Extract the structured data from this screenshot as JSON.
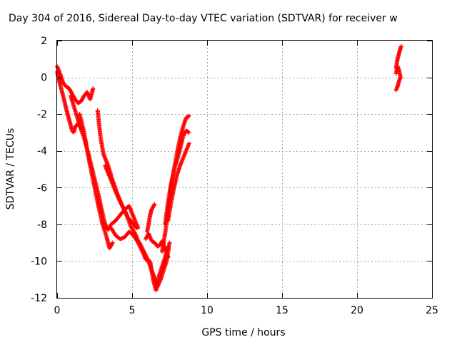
{
  "chart_data": {
    "type": "scatter",
    "title": "Day 304 of 2016, Sidereal Day-to-day VTEC variation (SDTVAR) for receiver w",
    "xlabel": "GPS time / hours",
    "ylabel": "SDTVAR / TECUs",
    "xlim": [
      0,
      25
    ],
    "ylim": [
      -12,
      2
    ],
    "x_ticks": [
      0,
      5,
      10,
      15,
      20,
      25
    ],
    "y_ticks": [
      -12,
      -10,
      -8,
      -6,
      -4,
      -2,
      0,
      2
    ],
    "x_tick_labels": [
      "0",
      "5",
      "10",
      "15",
      "20",
      "25"
    ],
    "y_tick_labels": [
      "-12",
      "-10",
      "-8",
      "-6",
      "-4",
      "-2",
      "0",
      "2"
    ],
    "grid": true,
    "marker": "plus",
    "marker_color": "#ff0000",
    "series": [
      {
        "x": [
          0.0,
          0.2,
          0.4,
          0.6,
          0.8,
          1.0,
          1.2,
          1.4,
          1.6,
          1.8,
          2.0,
          2.2,
          2.4
        ],
        "y": [
          0.6,
          0.2,
          -0.3,
          -0.5,
          -0.6,
          -0.9,
          -1.2,
          -1.4,
          -1.3,
          -1.0,
          -0.8,
          -1.2,
          -0.6
        ]
      },
      {
        "x": [
          0.0,
          0.2,
          0.4,
          0.6,
          0.8,
          1.0,
          1.1,
          1.2,
          1.4,
          1.6
        ],
        "y": [
          0.3,
          -0.4,
          -1.0,
          -1.7,
          -2.3,
          -2.9,
          -3.0,
          -2.7,
          -2.5,
          -2.8
        ]
      },
      {
        "x": [
          0.9,
          1.2,
          1.5,
          1.8,
          2.1,
          2.4,
          2.7,
          3.0,
          3.2,
          3.4,
          3.6,
          3.9,
          4.2,
          4.5,
          4.8,
          5.1,
          5.4
        ],
        "y": [
          -1.0,
          -1.8,
          -2.6,
          -3.3,
          -4.2,
          -5.2,
          -6.2,
          -7.3,
          -8.0,
          -8.3,
          -8.0,
          -7.8,
          -7.5,
          -7.2,
          -7.0,
          -7.6,
          -8.2
        ]
      },
      {
        "x": [
          1.5,
          1.8,
          2.1,
          2.4,
          2.7,
          3.0,
          3.3,
          3.5,
          3.7
        ],
        "y": [
          -2.0,
          -3.0,
          -4.4,
          -5.6,
          -6.8,
          -7.9,
          -8.7,
          -9.3,
          -9.0
        ]
      },
      {
        "x": [
          2.7,
          2.9,
          3.1,
          3.4,
          3.7,
          4.0,
          4.3,
          4.6,
          4.9,
          5.2,
          5.5,
          5.8,
          6.0
        ],
        "y": [
          -1.8,
          -3.3,
          -4.2,
          -4.8,
          -5.6,
          -6.3,
          -6.9,
          -7.4,
          -8.1,
          -8.5,
          -9.1,
          -9.6,
          -10.0
        ]
      },
      {
        "x": [
          3.2,
          3.5,
          3.8,
          4.1,
          4.4,
          4.7,
          5.0,
          5.3
        ],
        "y": [
          -4.8,
          -5.4,
          -6.0,
          -6.6,
          -7.1,
          -7.6,
          -7.9,
          -8.2
        ]
      },
      {
        "x": [
          3.6,
          3.9,
          4.2,
          4.5,
          4.8,
          5.1,
          5.4,
          5.7,
          5.9
        ],
        "y": [
          -8.2,
          -8.6,
          -8.8,
          -8.7,
          -8.4,
          -8.6,
          -9.0,
          -9.5,
          -9.9
        ]
      },
      {
        "x": [
          5.5,
          5.8,
          6.1,
          6.3,
          6.5,
          6.7,
          6.9,
          7.1,
          7.3,
          7.5
        ],
        "y": [
          -9.0,
          -9.5,
          -10.0,
          -10.5,
          -10.9,
          -11.4,
          -11.0,
          -10.5,
          -10.0,
          -9.0
        ]
      },
      {
        "x": [
          5.9,
          6.1,
          6.3,
          6.5,
          6.7,
          6.9,
          7.0,
          7.2,
          7.4
        ],
        "y": [
          -8.8,
          -8.5,
          -8.9,
          -9.0,
          -9.2,
          -9.1,
          -8.9,
          -9.3,
          -9.8
        ]
      },
      {
        "x": [
          6.0,
          6.1,
          6.2,
          6.3,
          6.5
        ],
        "y": [
          -8.4,
          -8.0,
          -7.5,
          -7.2,
          -6.9
        ]
      },
      {
        "x": [
          6.2,
          6.4,
          6.6,
          6.8,
          7.0,
          7.2,
          7.4
        ],
        "y": [
          -10.0,
          -11.0,
          -11.6,
          -10.8,
          -10.3,
          -9.8,
          -9.2
        ]
      },
      {
        "x": [
          7.0,
          7.2,
          7.4,
          7.6,
          7.8,
          8.0,
          8.2,
          8.4,
          8.6,
          8.8
        ],
        "y": [
          -9.5,
          -8.5,
          -7.3,
          -6.0,
          -5.0,
          -4.1,
          -3.3,
          -2.7,
          -2.2,
          -2.1
        ]
      },
      {
        "x": [
          7.2,
          7.4,
          7.6,
          7.8,
          8.0,
          8.2,
          8.4,
          8.6,
          8.8
        ],
        "y": [
          -8.0,
          -6.8,
          -5.8,
          -5.0,
          -4.5,
          -3.9,
          -3.2,
          -2.9,
          -3.0
        ]
      },
      {
        "x": [
          7.4,
          7.6,
          7.8,
          8.0,
          8.2,
          8.4,
          8.6,
          8.8
        ],
        "y": [
          -7.8,
          -6.8,
          -6.0,
          -5.3,
          -4.8,
          -4.4,
          -4.0,
          -3.6
        ]
      },
      {
        "x": [
          22.6,
          22.7,
          22.8,
          22.9,
          22.95
        ],
        "y": [
          0.5,
          1.0,
          1.3,
          1.6,
          1.7
        ]
      },
      {
        "x": [
          22.6,
          22.7,
          22.8,
          22.9,
          22.8,
          22.7,
          22.6
        ],
        "y": [
          0.2,
          0.6,
          0.4,
          0.0,
          -0.2,
          -0.5,
          -0.7
        ]
      }
    ]
  }
}
